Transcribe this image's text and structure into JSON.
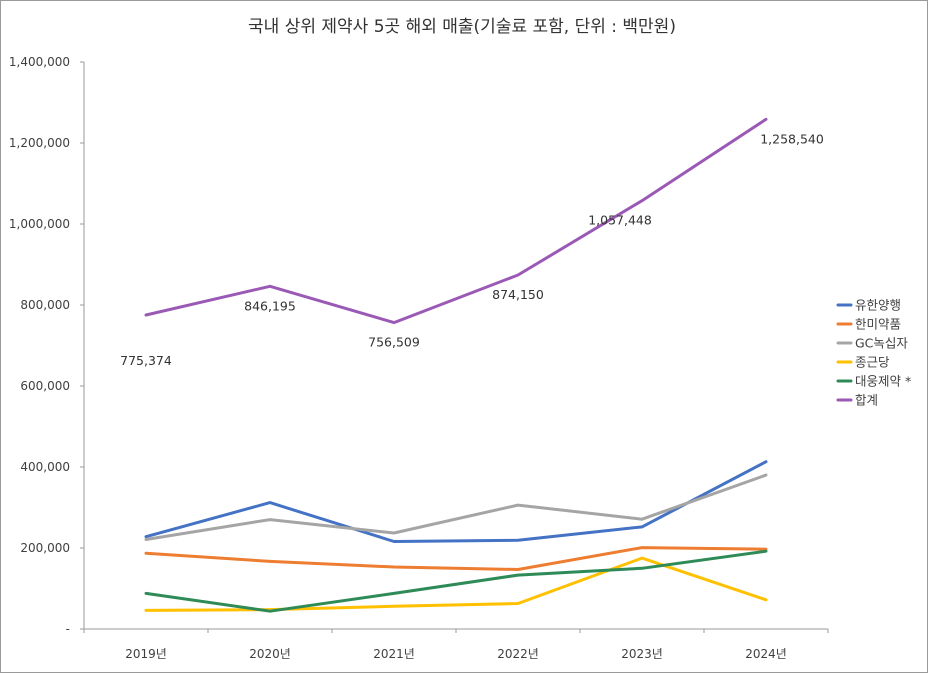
{
  "chart_data": {
    "type": "line",
    "title": "국내 상위 제약사 5곳 해외 매출(기술료 포함, 단위 : 백만원)",
    "categories": [
      "2019년",
      "2020년",
      "2021년",
      "2022년",
      "2023년",
      "2024년"
    ],
    "ylim": [
      0,
      1400000
    ],
    "yticks": [
      0,
      200000,
      400000,
      600000,
      800000,
      1000000,
      1200000,
      1400000
    ],
    "ytick_labels": [
      "-",
      "200,000",
      "400,000",
      "600,000",
      "800,000",
      "1,000,000",
      "1,200,000",
      "1,400,000"
    ],
    "legend_position": "right",
    "grid": false,
    "series": [
      {
        "name": "유한양행",
        "color": "#4472C4",
        "values": [
          228000,
          312000,
          216000,
          219000,
          252000,
          413000
        ]
      },
      {
        "name": "한미약품",
        "color": "#ED7D31",
        "values": [
          187000,
          167000,
          153000,
          147000,
          201000,
          197000
        ]
      },
      {
        "name": "GC녹십자",
        "color": "#A5A5A5",
        "values": [
          221000,
          270000,
          237000,
          306000,
          271000,
          380000
        ]
      },
      {
        "name": "종근당",
        "color": "#FFC000",
        "values": [
          46000,
          48000,
          56000,
          63000,
          175000,
          72000
        ]
      },
      {
        "name": "대웅제약 *",
        "color": "#2E8B57",
        "values": [
          88000,
          44000,
          88000,
          133000,
          150000,
          192000
        ]
      },
      {
        "name": "합계",
        "color": "#9B59B6",
        "values": [
          775374,
          846195,
          756509,
          874150,
          1057448,
          1258540
        ]
      }
    ],
    "data_labels": {
      "series": "합계",
      "labels": [
        "775,374",
        "846,195",
        "756,509",
        "874,150",
        "1,057,448",
        "1,258,540"
      ]
    }
  }
}
